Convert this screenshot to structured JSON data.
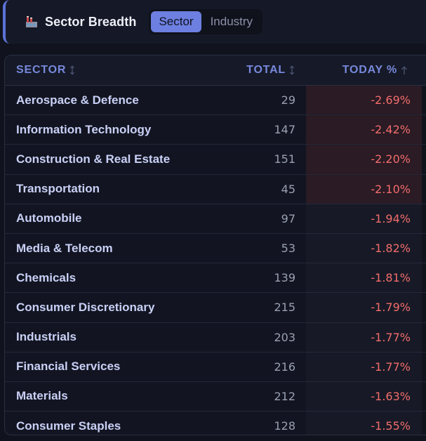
{
  "header": {
    "title": "Sector Breadth",
    "icon": "factory-icon",
    "toggle": [
      {
        "label": "Sector",
        "active": true
      },
      {
        "label": "Industry",
        "active": false
      }
    ]
  },
  "table": {
    "columns": {
      "sector": "SECTOR",
      "total": "TOTAL",
      "today": "TODAY %"
    },
    "rows": [
      {
        "sector": "Aerospace & Defence",
        "total": "29",
        "today": "-2.69%"
      },
      {
        "sector": "Information Technology",
        "total": "147",
        "today": "-2.42%"
      },
      {
        "sector": "Construction & Real Estate",
        "total": "151",
        "today": "-2.20%"
      },
      {
        "sector": "Transportation",
        "total": "45",
        "today": "-2.10%"
      },
      {
        "sector": "Automobile",
        "total": "97",
        "today": "-1.94%"
      },
      {
        "sector": "Media & Telecom",
        "total": "53",
        "today": "-1.82%"
      },
      {
        "sector": "Chemicals",
        "total": "139",
        "today": "-1.81%"
      },
      {
        "sector": "Consumer Discretionary",
        "total": "215",
        "today": "-1.79%"
      },
      {
        "sector": "Industrials",
        "total": "203",
        "today": "-1.77%"
      },
      {
        "sector": "Financial Services",
        "total": "216",
        "today": "-1.77%"
      },
      {
        "sector": "Materials",
        "total": "212",
        "today": "-1.63%"
      },
      {
        "sector": "Consumer Staples",
        "total": "128",
        "today": "-1.55%"
      }
    ]
  },
  "colors": {
    "accent": "#6d7fe0",
    "negative": "#f26c6c",
    "background": "#10131d"
  }
}
